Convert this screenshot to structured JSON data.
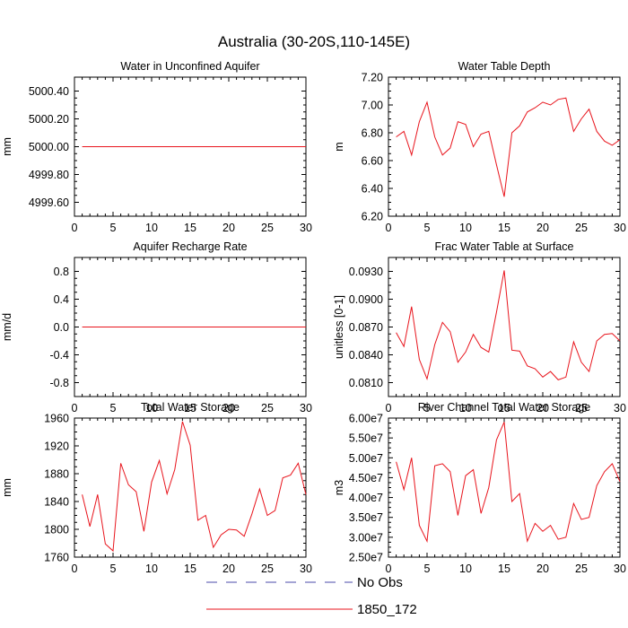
{
  "figure": {
    "title": "Australia (30-20S,110-145E)",
    "legend": [
      {
        "label": "No Obs",
        "color": "#4a4aa8",
        "dash": "dashed"
      },
      {
        "label": "1850_172",
        "color": "#e8141c",
        "dash": "solid"
      }
    ],
    "legend_position": "bottom-center"
  },
  "chart_data": [
    {
      "type": "line",
      "title": "Water in Unconfined Aquifer",
      "ylabel": "mm",
      "xlim": [
        0,
        30
      ],
      "ylim": [
        4999.5,
        5000.5
      ],
      "xticks": [
        0,
        5,
        10,
        15,
        20,
        25,
        30
      ],
      "yticks": [
        4999.6,
        4999.8,
        5000.0,
        5000.2,
        5000.4
      ],
      "yticklabels": [
        "4999.60",
        "4999.80",
        "5000.00",
        "5000.20",
        "5000.40"
      ],
      "series": [
        {
          "name": "1850_172",
          "x": [
            1,
            30
          ],
          "values": [
            5000.0,
            5000.0
          ]
        }
      ]
    },
    {
      "type": "line",
      "title": "Water Table Depth",
      "ylabel": "m",
      "xlim": [
        0,
        30
      ],
      "ylim": [
        6.2,
        7.2
      ],
      "xticks": [
        0,
        5,
        10,
        15,
        20,
        25,
        30
      ],
      "yticks": [
        6.2,
        6.4,
        6.6,
        6.8,
        7.0,
        7.2
      ],
      "yticklabels": [
        "6.20",
        "6.40",
        "6.60",
        "6.80",
        "7.00",
        "7.20"
      ],
      "series": [
        {
          "name": "1850_172",
          "x": [
            1,
            2,
            3,
            4,
            5,
            6,
            7,
            8,
            9,
            10,
            11,
            12,
            13,
            14,
            15,
            16,
            17,
            18,
            19,
            20,
            21,
            22,
            23,
            24,
            25,
            26,
            27,
            28,
            29,
            30
          ],
          "values": [
            6.77,
            6.81,
            6.64,
            6.88,
            7.02,
            6.77,
            6.64,
            6.69,
            6.88,
            6.86,
            6.7,
            6.79,
            6.81,
            6.57,
            6.34,
            6.8,
            6.85,
            6.95,
            6.98,
            7.02,
            7.0,
            7.04,
            7.05,
            6.81,
            6.9,
            6.97,
            6.81,
            6.74,
            6.71,
            6.75
          ]
        }
      ]
    },
    {
      "type": "line",
      "title": "Aquifer Recharge Rate",
      "ylabel": "mm/d",
      "xlim": [
        0,
        30
      ],
      "ylim": [
        -1.0,
        1.0
      ],
      "xticks": [
        0,
        5,
        10,
        15,
        20,
        25,
        30
      ],
      "yticks": [
        -0.8,
        -0.4,
        0.0,
        0.4,
        0.8
      ],
      "yticklabels": [
        "-0.8",
        "-0.4",
        "0.0",
        "0.4",
        "0.8"
      ],
      "series": [
        {
          "name": "1850_172",
          "x": [
            1,
            30
          ],
          "values": [
            0.0,
            0.0
          ]
        }
      ]
    },
    {
      "type": "line",
      "title": "Frac Water Table at Surface",
      "ylabel": "unitless [0-1]",
      "xlim": [
        0,
        30
      ],
      "ylim": [
        0.0795,
        0.0945
      ],
      "xticks": [
        0,
        5,
        10,
        15,
        20,
        25,
        30
      ],
      "yticks": [
        0.081,
        0.084,
        0.087,
        0.09,
        0.093
      ],
      "yticklabels": [
        "0.0810",
        "0.0840",
        "0.0870",
        "0.0900",
        "0.0930"
      ],
      "series": [
        {
          "name": "1850_172",
          "x": [
            1,
            2,
            3,
            4,
            5,
            6,
            7,
            8,
            9,
            10,
            11,
            12,
            13,
            14,
            15,
            16,
            17,
            18,
            19,
            20,
            21,
            22,
            23,
            24,
            25,
            26,
            27,
            28,
            29,
            30
          ],
          "values": [
            0.0864,
            0.0849,
            0.0892,
            0.0835,
            0.0814,
            0.0851,
            0.0875,
            0.0865,
            0.0832,
            0.0843,
            0.0862,
            0.0848,
            0.0843,
            0.0886,
            0.0931,
            0.0845,
            0.0844,
            0.0828,
            0.0825,
            0.0816,
            0.0822,
            0.0813,
            0.0816,
            0.0854,
            0.0832,
            0.0822,
            0.0855,
            0.0862,
            0.0863,
            0.0855
          ]
        }
      ]
    },
    {
      "type": "line",
      "title": "Total Water Storage",
      "ylabel": "mm",
      "xlim": [
        0,
        30
      ],
      "ylim": [
        1760,
        1960
      ],
      "xticks": [
        0,
        5,
        10,
        15,
        20,
        25,
        30
      ],
      "yticks": [
        1760,
        1800,
        1840,
        1880,
        1920,
        1960
      ],
      "yticklabels": [
        "1760",
        "1800",
        "1840",
        "1880",
        "1920",
        "1960"
      ],
      "series": [
        {
          "name": "1850_172",
          "x": [
            1,
            2,
            3,
            4,
            5,
            6,
            7,
            8,
            9,
            10,
            11,
            12,
            13,
            14,
            15,
            16,
            17,
            18,
            19,
            20,
            21,
            22,
            23,
            24,
            25,
            26,
            27,
            28,
            29,
            30
          ],
          "values": [
            1850,
            1804,
            1850,
            1779,
            1769,
            1895,
            1864,
            1854,
            1797,
            1868,
            1899,
            1851,
            1886,
            1955,
            1921,
            1813,
            1820,
            1774,
            1792,
            1800,
            1799,
            1790,
            1822,
            1858,
            1820,
            1827,
            1874,
            1878,
            1895,
            1850
          ]
        }
      ]
    },
    {
      "type": "line",
      "title": "River Channel Total Water Storage",
      "ylabel": "m3",
      "xlim": [
        0,
        30
      ],
      "ylim": [
        25000000,
        60000000
      ],
      "xticks": [
        0,
        5,
        10,
        15,
        20,
        25,
        30
      ],
      "yticks": [
        25000000,
        30000000,
        35000000,
        40000000,
        45000000,
        50000000,
        55000000,
        60000000
      ],
      "yticklabels": [
        "2.50e7",
        "3.00e7",
        "3.50e7",
        "4.00e7",
        "4.50e7",
        "5.00e7",
        "5.50e7",
        "6.00e7"
      ],
      "series": [
        {
          "name": "1850_172",
          "x": [
            1,
            2,
            3,
            4,
            5,
            6,
            7,
            8,
            9,
            10,
            11,
            12,
            13,
            14,
            15,
            16,
            17,
            18,
            19,
            20,
            21,
            22,
            23,
            24,
            25,
            26,
            27,
            28,
            29,
            30
          ],
          "values": [
            49000000,
            42000000,
            50000000,
            33000000,
            29000000,
            48000000,
            48500000,
            46500000,
            35500000,
            45500000,
            47000000,
            36000000,
            42500000,
            54500000,
            59000000,
            39000000,
            41000000,
            29000000,
            33500000,
            31500000,
            33000000,
            29500000,
            30000000,
            38500000,
            34500000,
            35000000,
            43000000,
            46500000,
            48500000,
            44000000
          ]
        }
      ]
    }
  ]
}
